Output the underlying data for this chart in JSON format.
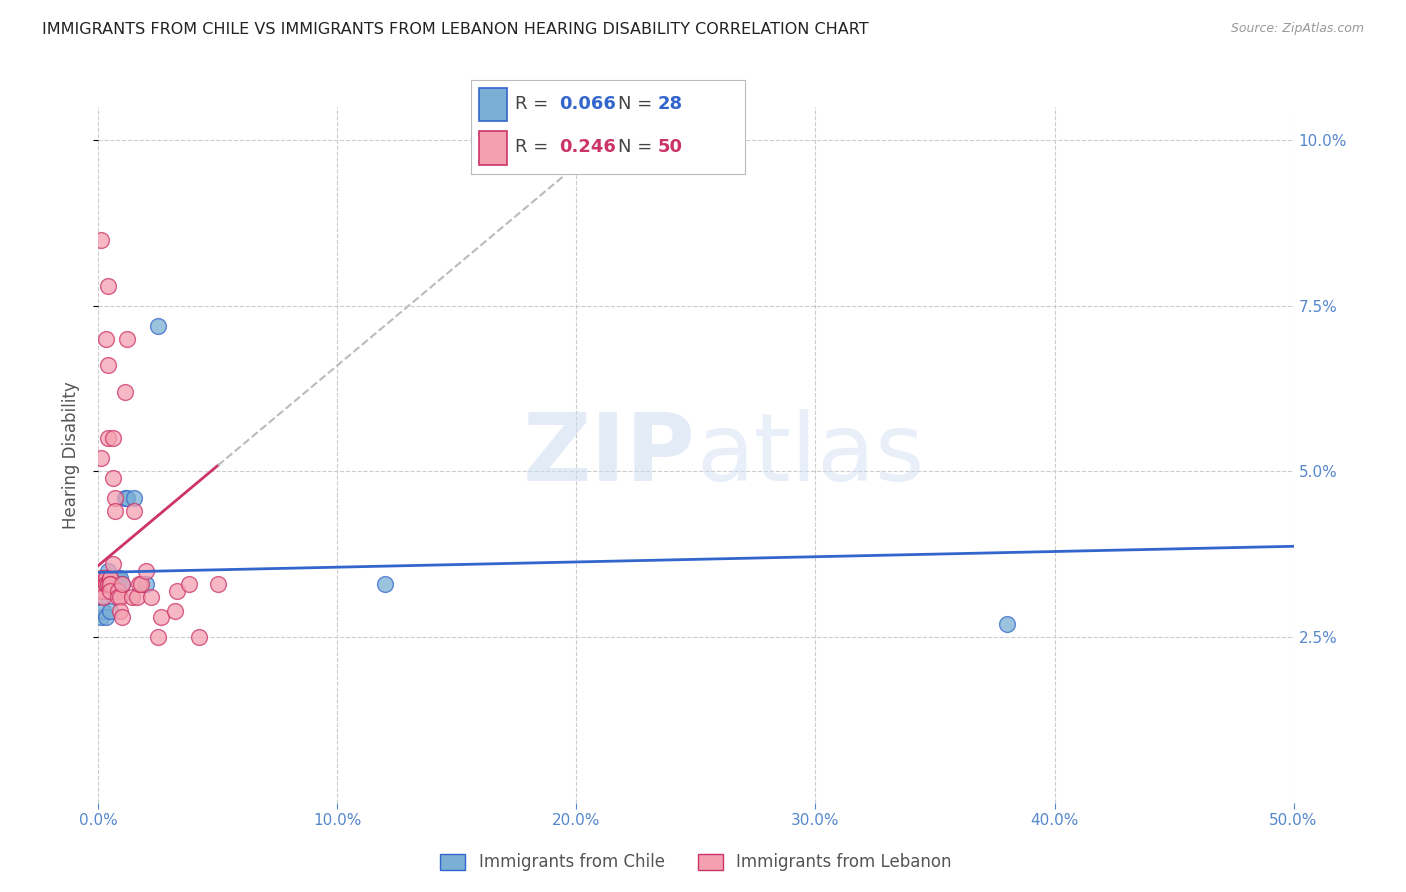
{
  "title": "IMMIGRANTS FROM CHILE VS IMMIGRANTS FROM LEBANON HEARING DISABILITY CORRELATION CHART",
  "source": "Source: ZipAtlas.com",
  "ylabel": "Hearing Disability",
  "legend_label_1": "Immigrants from Chile",
  "legend_label_2": "Immigrants from Lebanon",
  "color_chile": "#7bafd4",
  "color_lebanon": "#f4a0b0",
  "color_trendline_chile": "#3366cc",
  "color_trendline_lebanon": "#cc3366",
  "color_dashed": "#bbbbbb",
  "R_chile": 0.066,
  "N_chile": 28,
  "R_lebanon": 0.246,
  "N_lebanon": 50,
  "xlim": [
    0.0,
    0.5
  ],
  "ylim": [
    0.0,
    0.105
  ],
  "yticks": [
    0.025,
    0.05,
    0.075,
    0.1
  ],
  "ytick_labels": [
    "2.5%",
    "5.0%",
    "7.5%",
    "10.0%"
  ],
  "xticks": [
    0.0,
    0.1,
    0.2,
    0.3,
    0.4,
    0.5
  ],
  "xtick_labels": [
    "0.0%",
    "10.0%",
    "20.0%",
    "30.0%",
    "40.0%",
    "50.0%"
  ],
  "chile_x": [
    0.001,
    0.001,
    0.002,
    0.002,
    0.003,
    0.003,
    0.003,
    0.004,
    0.004,
    0.004,
    0.005,
    0.005,
    0.005,
    0.006,
    0.006,
    0.007,
    0.007,
    0.008,
    0.008,
    0.009,
    0.01,
    0.011,
    0.012,
    0.015,
    0.02,
    0.025,
    0.12,
    0.38
  ],
  "chile_y": [
    0.031,
    0.028,
    0.033,
    0.029,
    0.034,
    0.032,
    0.028,
    0.035,
    0.033,
    0.032,
    0.034,
    0.032,
    0.029,
    0.033,
    0.033,
    0.034,
    0.032,
    0.034,
    0.033,
    0.034,
    0.033,
    0.046,
    0.046,
    0.046,
    0.033,
    0.072,
    0.033,
    0.027
  ],
  "lebanon_x": [
    0.001,
    0.001,
    0.001,
    0.002,
    0.002,
    0.002,
    0.002,
    0.002,
    0.003,
    0.003,
    0.003,
    0.003,
    0.003,
    0.004,
    0.004,
    0.004,
    0.004,
    0.004,
    0.005,
    0.005,
    0.005,
    0.005,
    0.005,
    0.006,
    0.006,
    0.006,
    0.007,
    0.007,
    0.008,
    0.008,
    0.009,
    0.009,
    0.01,
    0.01,
    0.011,
    0.012,
    0.014,
    0.015,
    0.016,
    0.017,
    0.018,
    0.02,
    0.022,
    0.025,
    0.026,
    0.032,
    0.033,
    0.038,
    0.042,
    0.05
  ],
  "lebanon_y": [
    0.034,
    0.085,
    0.052,
    0.034,
    0.033,
    0.032,
    0.032,
    0.031,
    0.07,
    0.034,
    0.034,
    0.033,
    0.033,
    0.033,
    0.078,
    0.066,
    0.055,
    0.033,
    0.034,
    0.034,
    0.033,
    0.033,
    0.032,
    0.055,
    0.049,
    0.036,
    0.046,
    0.044,
    0.032,
    0.031,
    0.031,
    0.029,
    0.033,
    0.028,
    0.062,
    0.07,
    0.031,
    0.044,
    0.031,
    0.033,
    0.033,
    0.035,
    0.031,
    0.025,
    0.028,
    0.029,
    0.032,
    0.033,
    0.025,
    0.033
  ],
  "watermark_zip": "ZIP",
  "watermark_atlas": "atlas",
  "background_color": "#ffffff",
  "title_color": "#222222",
  "axis_label_color": "#555555",
  "tick_color": "#5588cc",
  "grid_color": "#cccccc",
  "title_fontsize": 11.5,
  "source_fontsize": 9,
  "axis_tick_fontsize": 11,
  "legend_fontsize": 13
}
